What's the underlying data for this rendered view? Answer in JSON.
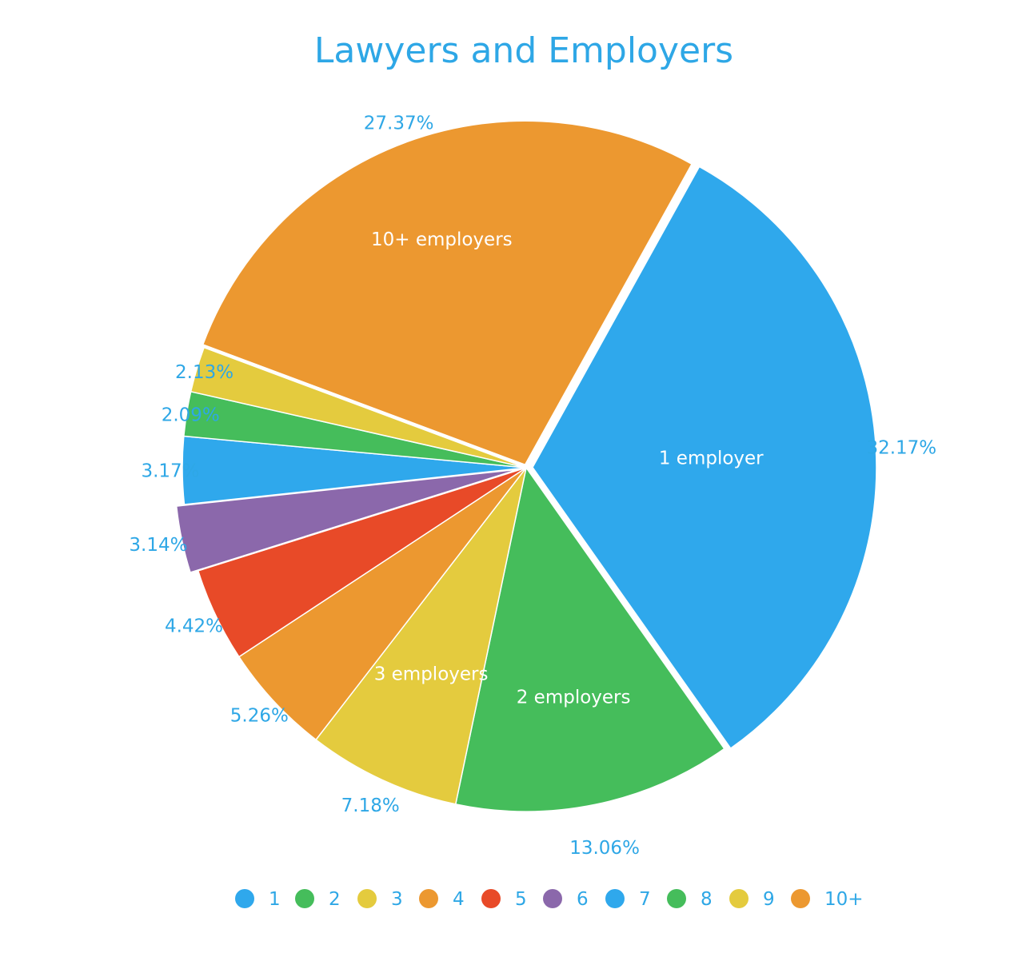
{
  "chart_data": {
    "type": "pie",
    "title": "Lawyers and Employers",
    "slices": [
      {
        "category": "1",
        "value": 32.17,
        "label": "32.17%",
        "inner_label": "1 employer",
        "color": "#2fa8ec"
      },
      {
        "category": "2",
        "value": 13.06,
        "label": "13.06%",
        "inner_label": "2 employers",
        "color": "#45bd5b"
      },
      {
        "category": "3",
        "value": 7.18,
        "label": "7.18%",
        "inner_label": "3 employers",
        "color": "#e4cb3e"
      },
      {
        "category": "4",
        "value": 5.26,
        "label": "5.26%",
        "inner_label": "",
        "color": "#ec9830"
      },
      {
        "category": "5",
        "value": 4.42,
        "label": "4.42%",
        "inner_label": "",
        "color": "#e84a28"
      },
      {
        "category": "6",
        "value": 3.14,
        "label": "3.14%",
        "inner_label": "",
        "color": "#8b68ab"
      },
      {
        "category": "7",
        "value": 3.17,
        "label": "3.17%",
        "inner_label": "",
        "color": "#2fa8ec"
      },
      {
        "category": "8",
        "value": 2.09,
        "label": "2.09%",
        "inner_label": "",
        "color": "#45bd5b"
      },
      {
        "category": "9",
        "value": 2.13,
        "label": "2.13%",
        "inner_label": "",
        "color": "#e4cb3e"
      },
      {
        "category": "10+",
        "value": 27.37,
        "label": "27.37%",
        "inner_label": "10+ employers",
        "color": "#ec9830"
      }
    ],
    "legend_placement": "bottom"
  }
}
